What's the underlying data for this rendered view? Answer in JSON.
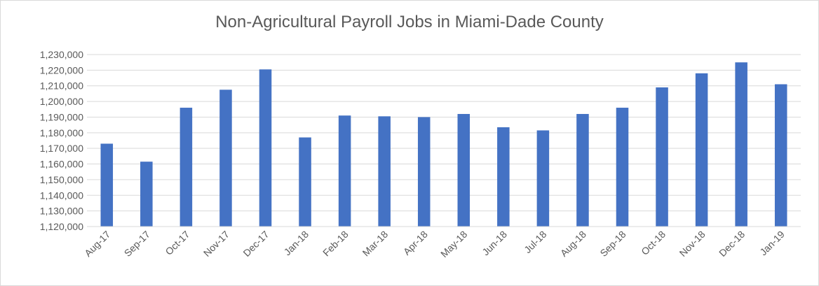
{
  "chart_data": {
    "type": "bar",
    "title": "Non-Agricultural Payroll Jobs in Miami-Dade County",
    "categories": [
      "Aug-17",
      "Sep-17",
      "Oct-17",
      "Nov-17",
      "Dec-17",
      "Jan-18",
      "Feb-18",
      "Mar-18",
      "Apr-18",
      "May-18",
      "Jun-18",
      "Jul-18",
      "Aug-18",
      "Sep-18",
      "Oct-18",
      "Nov-18",
      "Dec-18",
      "Jan-19"
    ],
    "values": [
      1173000,
      1161500,
      1196000,
      1207500,
      1220500,
      1177000,
      1191000,
      1190500,
      1190000,
      1192000,
      1183500,
      1181500,
      1192000,
      1196000,
      1209000,
      1218000,
      1225000,
      1211000
    ],
    "ylim": [
      1120000,
      1230000
    ],
    "yticks": [
      "1,120,000",
      "1,130,000",
      "1,140,000",
      "1,150,000",
      "1,160,000",
      "1,170,000",
      "1,180,000",
      "1,190,000",
      "1,200,000",
      "1,210,000",
      "1,220,000",
      "1,230,000"
    ],
    "xlabel": "",
    "ylabel": "",
    "grid": true,
    "legend": "none",
    "bar_color": "#4472c4"
  }
}
